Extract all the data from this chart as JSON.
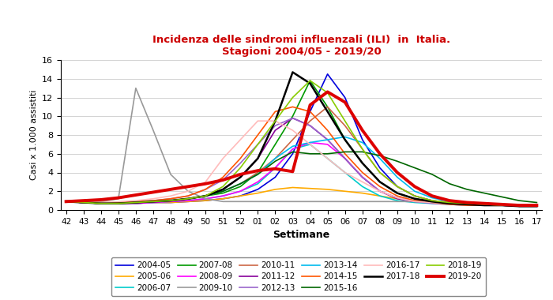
{
  "title_line1": "Incidenza delle sindromi influenzali (ILI)  in  Italia.",
  "title_line2": "Stagioni 2004/05 - 2019/20",
  "title_color": "#cc0000",
  "xlabel": "Settimane",
  "ylabel": "Casi x 1.000 assistiti",
  "xtick_labels": [
    "42",
    "43",
    "44",
    "45",
    "46",
    "47",
    "48",
    "49",
    "50",
    "51",
    "52",
    "01",
    "02",
    "03",
    "04",
    "05",
    "06",
    "07",
    "08",
    "09",
    "10",
    "11",
    "12",
    "13",
    "14",
    "15",
    "16",
    "17"
  ],
  "ylim": [
    0,
    16
  ],
  "yticks": [
    0,
    2,
    4,
    6,
    8,
    10,
    12,
    14,
    16
  ],
  "seasons": {
    "2004-05": {
      "color": "#0000dd",
      "lw": 1.2,
      "values": [
        0.9,
        0.8,
        0.8,
        0.7,
        0.7,
        0.8,
        0.8,
        0.9,
        1.0,
        1.2,
        1.5,
        2.2,
        3.5,
        6.0,
        10.5,
        14.5,
        12.0,
        7.5,
        4.5,
        2.5,
        1.5,
        1.0,
        0.8,
        0.7,
        0.6,
        0.6,
        0.5,
        0.5
      ]
    },
    "2005-06": {
      "color": "#ffaa00",
      "lw": 1.2,
      "values": [
        0.9,
        0.8,
        0.8,
        0.7,
        0.7,
        0.8,
        0.8,
        0.9,
        1.0,
        1.2,
        1.5,
        1.8,
        2.2,
        2.4,
        2.3,
        2.2,
        2.0,
        1.8,
        1.5,
        1.2,
        1.0,
        0.9,
        0.8,
        0.7,
        0.6,
        0.6,
        0.5,
        0.5
      ]
    },
    "2006-07": {
      "color": "#00cccc",
      "lw": 1.2,
      "values": [
        0.9,
        0.8,
        0.7,
        0.7,
        0.7,
        0.8,
        0.9,
        1.0,
        1.2,
        1.5,
        2.0,
        2.8,
        4.5,
        6.5,
        7.0,
        5.5,
        4.0,
        2.5,
        1.5,
        1.0,
        0.8,
        0.7,
        0.6,
        0.5,
        0.5,
        0.5,
        0.5,
        0.5
      ]
    },
    "2007-08": {
      "color": "#009900",
      "lw": 1.2,
      "values": [
        0.9,
        0.8,
        0.7,
        0.7,
        0.8,
        0.9,
        1.0,
        1.2,
        1.5,
        1.8,
        2.5,
        4.0,
        7.0,
        10.0,
        13.8,
        11.0,
        7.5,
        5.0,
        3.0,
        1.8,
        1.2,
        0.9,
        0.7,
        0.6,
        0.5,
        0.5,
        0.5,
        0.5
      ]
    },
    "2008-09": {
      "color": "#ff00ff",
      "lw": 1.2,
      "values": [
        0.9,
        0.8,
        0.7,
        0.7,
        0.7,
        0.8,
        0.9,
        1.0,
        1.2,
        1.5,
        2.0,
        3.0,
        4.5,
        6.5,
        7.2,
        7.0,
        5.5,
        3.5,
        2.0,
        1.3,
        1.0,
        0.8,
        0.7,
        0.6,
        0.5,
        0.5,
        0.5,
        0.5
      ]
    },
    "2009-10": {
      "color": "#999999",
      "lw": 1.2,
      "values": [
        1.0,
        0.9,
        0.9,
        1.2,
        13.0,
        8.5,
        3.8,
        2.0,
        1.2,
        0.9,
        0.9,
        0.9,
        0.9,
        0.9,
        0.9,
        0.9,
        0.9,
        0.9,
        0.9,
        0.9,
        0.9,
        0.8,
        0.7,
        0.6,
        0.5,
        0.5,
        0.4,
        0.4
      ]
    },
    "2010-11": {
      "color": "#cc6644",
      "lw": 1.2,
      "values": [
        0.9,
        0.8,
        0.8,
        0.8,
        0.8,
        0.9,
        1.0,
        1.2,
        1.5,
        2.0,
        2.8,
        4.0,
        5.5,
        7.5,
        9.5,
        11.0,
        9.0,
        6.5,
        4.0,
        2.5,
        1.5,
        1.0,
        0.8,
        0.7,
        0.6,
        0.5,
        0.5,
        0.5
      ]
    },
    "2011-12": {
      "color": "#880099",
      "lw": 1.2,
      "values": [
        0.9,
        0.8,
        0.7,
        0.7,
        0.8,
        0.9,
        1.0,
        1.2,
        1.5,
        2.2,
        3.5,
        5.5,
        8.5,
        9.8,
        9.0,
        7.5,
        5.5,
        3.5,
        2.0,
        1.2,
        0.9,
        0.8,
        0.7,
        0.6,
        0.5,
        0.5,
        0.4,
        0.4
      ]
    },
    "2012-13": {
      "color": "#9966cc",
      "lw": 1.2,
      "values": [
        0.9,
        0.8,
        0.7,
        0.8,
        0.9,
        1.0,
        1.2,
        1.5,
        2.2,
        3.2,
        5.0,
        7.0,
        9.0,
        9.8,
        9.0,
        7.5,
        5.5,
        3.5,
        2.0,
        1.3,
        0.9,
        0.7,
        0.6,
        0.5,
        0.5,
        0.5,
        0.4,
        0.4
      ]
    },
    "2013-14": {
      "color": "#00bbee",
      "lw": 1.2,
      "values": [
        0.9,
        0.8,
        0.7,
        0.7,
        0.8,
        0.9,
        1.0,
        1.2,
        1.5,
        2.0,
        2.8,
        3.8,
        5.5,
        6.8,
        7.2,
        7.5,
        7.8,
        7.2,
        5.5,
        3.5,
        2.0,
        1.3,
        0.9,
        0.7,
        0.6,
        0.5,
        0.5,
        0.5
      ]
    },
    "2014-15": {
      "color": "#ff5500",
      "lw": 1.2,
      "values": [
        0.9,
        0.8,
        0.7,
        0.8,
        0.9,
        1.0,
        1.2,
        1.5,
        2.2,
        3.5,
        5.5,
        8.0,
        10.5,
        11.0,
        10.5,
        8.5,
        6.0,
        4.0,
        2.5,
        1.5,
        1.0,
        0.8,
        0.6,
        0.5,
        0.5,
        0.5,
        0.4,
        0.4
      ]
    },
    "2015-16": {
      "color": "#006600",
      "lw": 1.2,
      "values": [
        0.9,
        0.8,
        0.7,
        0.7,
        0.8,
        0.9,
        1.0,
        1.2,
        1.5,
        2.0,
        2.8,
        3.8,
        5.2,
        6.2,
        6.0,
        6.0,
        6.2,
        6.2,
        5.8,
        5.2,
        4.5,
        3.8,
        2.8,
        2.2,
        1.8,
        1.4,
        1.0,
        0.8
      ]
    },
    "2016-17": {
      "color": "#ffbbbb",
      "lw": 1.2,
      "values": [
        0.9,
        0.8,
        0.8,
        0.9,
        1.0,
        1.2,
        1.5,
        2.0,
        3.0,
        5.5,
        7.5,
        9.5,
        9.5,
        8.5,
        7.0,
        5.5,
        4.0,
        3.0,
        2.0,
        1.3,
        0.9,
        0.8,
        0.7,
        0.6,
        0.5,
        0.5,
        0.4,
        0.4
      ]
    },
    "2017-18": {
      "color": "#000000",
      "lw": 1.8,
      "values": [
        0.9,
        0.8,
        0.7,
        0.7,
        0.8,
        0.9,
        1.0,
        1.2,
        1.5,
        2.2,
        3.5,
        5.5,
        9.5,
        14.7,
        13.5,
        10.5,
        7.5,
        5.0,
        3.0,
        1.8,
        1.2,
        0.9,
        0.7,
        0.6,
        0.5,
        0.5,
        0.4,
        0.4
      ]
    },
    "2018-19": {
      "color": "#88cc00",
      "lw": 1.2,
      "values": [
        0.9,
        0.8,
        0.7,
        0.7,
        0.8,
        0.9,
        1.0,
        1.2,
        1.5,
        2.5,
        4.5,
        7.0,
        9.5,
        12.0,
        13.8,
        12.5,
        9.5,
        6.5,
        4.0,
        2.5,
        1.5,
        1.0,
        0.8,
        0.7,
        0.6,
        0.5,
        0.5,
        0.5
      ]
    },
    "2019-20": {
      "color": "#dd0000",
      "lw": 2.8,
      "values": [
        0.9,
        1.0,
        1.1,
        1.3,
        1.6,
        1.9,
        2.2,
        2.5,
        2.8,
        3.2,
        3.8,
        4.2,
        4.4,
        4.1,
        11.2,
        12.6,
        11.5,
        8.5,
        6.0,
        4.0,
        2.5,
        1.5,
        1.0,
        0.8,
        0.7,
        0.6,
        0.5,
        0.5
      ]
    }
  },
  "legend_order": [
    [
      "2004-05",
      "#0000dd"
    ],
    [
      "2005-06",
      "#ffaa00"
    ],
    [
      "2006-07",
      "#00cccc"
    ],
    [
      "2007-08",
      "#009900"
    ],
    [
      "2008-09",
      "#ff00ff"
    ],
    [
      "2009-10",
      "#999999"
    ],
    [
      "2010-11",
      "#cc6644"
    ],
    [
      "2011-12",
      "#880099"
    ],
    [
      "2012-13",
      "#9966cc"
    ],
    [
      "2013-14",
      "#00bbee"
    ],
    [
      "2014-15",
      "#ff5500"
    ],
    [
      "2015-16",
      "#006600"
    ],
    [
      "2016-17",
      "#ffbbbb"
    ],
    [
      "2017-18",
      "#000000"
    ],
    [
      "2018-19",
      "#88cc00"
    ],
    [
      "2019-20",
      "#dd0000"
    ]
  ]
}
